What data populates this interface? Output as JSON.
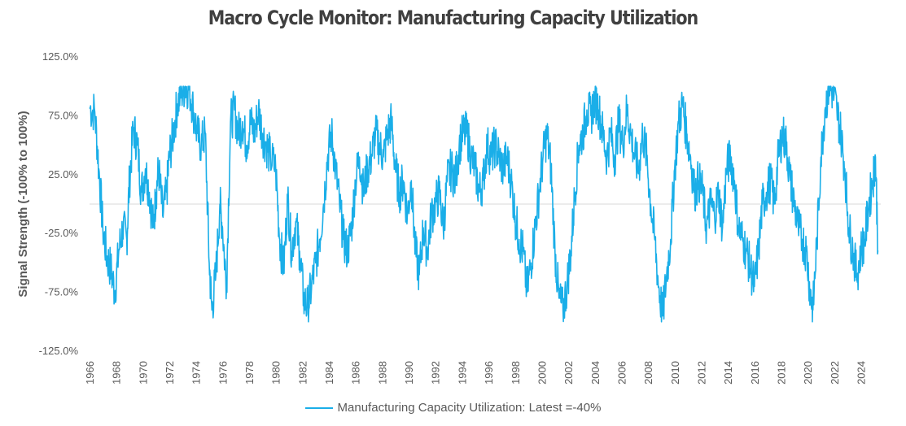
{
  "chart_data": {
    "type": "line",
    "title": "Macro Cycle Monitor: Manufacturing Capacity Utilization",
    "ylabel": "Signal Strength (-100% to 100%)",
    "xlabel": "",
    "ylim": [
      -125,
      125
    ],
    "y_ticks": [
      "125.0%",
      "75.0%",
      "25.0%",
      "-25.0%",
      "-75.0%",
      "-125.0%"
    ],
    "y_tick_values": [
      125,
      75,
      25,
      -25,
      -75,
      -125
    ],
    "x_ticks": [
      "1966",
      "1968",
      "1970",
      "1972",
      "1974",
      "1976",
      "1978",
      "1980",
      "1982",
      "1984",
      "1986",
      "1988",
      "1990",
      "1992",
      "1994",
      "1996",
      "1998",
      "2000",
      "2002",
      "2004",
      "2006",
      "2008",
      "2010",
      "2012",
      "2014",
      "2016",
      "2018",
      "2020",
      "2022",
      "2024"
    ],
    "xlim": [
      1966,
      2025.5
    ],
    "zero_line": true,
    "grid": false,
    "legend_position": "bottom",
    "series": [
      {
        "name": "Manufacturing Capacity Utilization: Latest =-40%",
        "color": "#1aaee8",
        "points": [
          [
            1966.0,
            82
          ],
          [
            1966.4,
            78
          ],
          [
            1966.7,
            30
          ],
          [
            1967.0,
            -20
          ],
          [
            1967.3,
            -45
          ],
          [
            1967.6,
            -55
          ],
          [
            1967.9,
            -75
          ],
          [
            1968.2,
            -40
          ],
          [
            1968.5,
            -20
          ],
          [
            1968.8,
            -30
          ],
          [
            1969.0,
            20
          ],
          [
            1969.3,
            65
          ],
          [
            1969.6,
            50
          ],
          [
            1969.9,
            10
          ],
          [
            1970.2,
            30
          ],
          [
            1970.5,
            10
          ],
          [
            1970.8,
            -20
          ],
          [
            1971.0,
            10
          ],
          [
            1971.2,
            30
          ],
          [
            1971.5,
            -10
          ],
          [
            1971.8,
            10
          ],
          [
            1972.0,
            40
          ],
          [
            1972.3,
            60
          ],
          [
            1972.6,
            85
          ],
          [
            1972.9,
            95
          ],
          [
            1973.2,
            100
          ],
          [
            1973.5,
            98
          ],
          [
            1973.8,
            80
          ],
          [
            1974.1,
            60
          ],
          [
            1974.4,
            50
          ],
          [
            1974.7,
            60
          ],
          [
            1975.0,
            -50
          ],
          [
            1975.2,
            -90
          ],
          [
            1975.5,
            -60
          ],
          [
            1975.8,
            0
          ],
          [
            1976.0,
            -20
          ],
          [
            1976.3,
            -70
          ],
          [
            1976.6,
            70
          ],
          [
            1976.9,
            80
          ],
          [
            1977.2,
            60
          ],
          [
            1977.5,
            70
          ],
          [
            1977.8,
            50
          ],
          [
            1978.1,
            70
          ],
          [
            1978.4,
            60
          ],
          [
            1978.7,
            80
          ],
          [
            1979.0,
            60
          ],
          [
            1979.3,
            50
          ],
          [
            1979.6,
            40
          ],
          [
            1980.0,
            30
          ],
          [
            1980.3,
            -30
          ],
          [
            1980.6,
            -55
          ],
          [
            1980.9,
            5
          ],
          [
            1981.2,
            -40
          ],
          [
            1981.5,
            -15
          ],
          [
            1981.8,
            -40
          ],
          [
            1982.1,
            -80
          ],
          [
            1982.4,
            -88
          ],
          [
            1982.7,
            -70
          ],
          [
            1983.0,
            -50
          ],
          [
            1983.3,
            -30
          ],
          [
            1983.6,
            0
          ],
          [
            1983.9,
            40
          ],
          [
            1984.2,
            60
          ],
          [
            1984.5,
            30
          ],
          [
            1984.8,
            0
          ],
          [
            1985.1,
            -30
          ],
          [
            1985.4,
            -40
          ],
          [
            1985.7,
            -20
          ],
          [
            1986.0,
            20
          ],
          [
            1986.3,
            40
          ],
          [
            1986.6,
            10
          ],
          [
            1986.9,
            30
          ],
          [
            1987.2,
            40
          ],
          [
            1987.5,
            60
          ],
          [
            1987.8,
            50
          ],
          [
            1988.1,
            40
          ],
          [
            1988.4,
            60
          ],
          [
            1988.7,
            70
          ],
          [
            1989.0,
            30
          ],
          [
            1989.3,
            10
          ],
          [
            1989.6,
            20
          ],
          [
            1989.9,
            -10
          ],
          [
            1990.2,
            20
          ],
          [
            1990.5,
            -40
          ],
          [
            1990.8,
            -60
          ],
          [
            1991.1,
            -20
          ],
          [
            1991.4,
            -40
          ],
          [
            1991.7,
            -10
          ],
          [
            1992.0,
            0
          ],
          [
            1992.3,
            10
          ],
          [
            1992.6,
            -20
          ],
          [
            1992.9,
            20
          ],
          [
            1993.2,
            30
          ],
          [
            1993.5,
            20
          ],
          [
            1993.8,
            50
          ],
          [
            1994.1,
            60
          ],
          [
            1994.4,
            60
          ],
          [
            1994.7,
            40
          ],
          [
            1995.0,
            30
          ],
          [
            1995.3,
            10
          ],
          [
            1995.6,
            20
          ],
          [
            1995.9,
            50
          ],
          [
            1996.2,
            40
          ],
          [
            1996.5,
            50
          ],
          [
            1996.8,
            40
          ],
          [
            1997.1,
            30
          ],
          [
            1997.4,
            40
          ],
          [
            1997.7,
            20
          ],
          [
            1998.0,
            -10
          ],
          [
            1998.3,
            -30
          ],
          [
            1998.6,
            -40
          ],
          [
            1998.9,
            -75
          ],
          [
            1999.2,
            -50
          ],
          [
            1999.5,
            -20
          ],
          [
            1999.8,
            10
          ],
          [
            2000.1,
            40
          ],
          [
            2000.4,
            60
          ],
          [
            2000.7,
            30
          ],
          [
            2001.0,
            -40
          ],
          [
            2001.3,
            -80
          ],
          [
            2001.6,
            -90
          ],
          [
            2001.9,
            -70
          ],
          [
            2002.2,
            -40
          ],
          [
            2002.5,
            10
          ],
          [
            2002.8,
            50
          ],
          [
            2003.1,
            60
          ],
          [
            2003.4,
            80
          ],
          [
            2003.7,
            75
          ],
          [
            2004.0,
            90
          ],
          [
            2004.3,
            80
          ],
          [
            2004.6,
            60
          ],
          [
            2004.9,
            40
          ],
          [
            2005.2,
            60
          ],
          [
            2005.5,
            40
          ],
          [
            2005.8,
            70
          ],
          [
            2006.1,
            50
          ],
          [
            2006.4,
            80
          ],
          [
            2006.7,
            60
          ],
          [
            2007.0,
            40
          ],
          [
            2007.3,
            30
          ],
          [
            2007.6,
            60
          ],
          [
            2007.9,
            40
          ],
          [
            2008.2,
            0
          ],
          [
            2008.5,
            -30
          ],
          [
            2008.8,
            -70
          ],
          [
            2009.1,
            -95
          ],
          [
            2009.4,
            -60
          ],
          [
            2009.7,
            -30
          ],
          [
            2010.0,
            30
          ],
          [
            2010.3,
            70
          ],
          [
            2010.6,
            85
          ],
          [
            2010.9,
            60
          ],
          [
            2011.2,
            40
          ],
          [
            2011.5,
            10
          ],
          [
            2011.8,
            20
          ],
          [
            2012.1,
            10
          ],
          [
            2012.4,
            -20
          ],
          [
            2012.7,
            0
          ],
          [
            2013.0,
            -10
          ],
          [
            2013.3,
            10
          ],
          [
            2013.6,
            -20
          ],
          [
            2013.9,
            30
          ],
          [
            2014.2,
            40
          ],
          [
            2014.5,
            20
          ],
          [
            2014.8,
            -20
          ],
          [
            2015.1,
            -30
          ],
          [
            2015.4,
            -40
          ],
          [
            2015.7,
            -55
          ],
          [
            2016.0,
            -70
          ],
          [
            2016.3,
            -40
          ],
          [
            2016.6,
            0
          ],
          [
            2016.9,
            10
          ],
          [
            2017.2,
            20
          ],
          [
            2017.5,
            0
          ],
          [
            2017.8,
            40
          ],
          [
            2018.1,
            60
          ],
          [
            2018.4,
            50
          ],
          [
            2018.7,
            20
          ],
          [
            2019.0,
            0
          ],
          [
            2019.3,
            -20
          ],
          [
            2019.6,
            -30
          ],
          [
            2019.9,
            -40
          ],
          [
            2020.2,
            -75
          ],
          [
            2020.4,
            -90
          ],
          [
            2020.7,
            -30
          ],
          [
            2021.0,
            40
          ],
          [
            2021.3,
            80
          ],
          [
            2021.6,
            100
          ],
          [
            2021.9,
            95
          ],
          [
            2022.2,
            80
          ],
          [
            2022.5,
            60
          ],
          [
            2022.8,
            30
          ],
          [
            2023.1,
            -20
          ],
          [
            2023.4,
            -40
          ],
          [
            2023.7,
            -60
          ],
          [
            2024.0,
            -40
          ],
          [
            2024.3,
            -30
          ],
          [
            2024.6,
            0
          ],
          [
            2024.9,
            20
          ],
          [
            2025.1,
            40
          ],
          [
            2025.3,
            -40
          ]
        ]
      }
    ]
  }
}
